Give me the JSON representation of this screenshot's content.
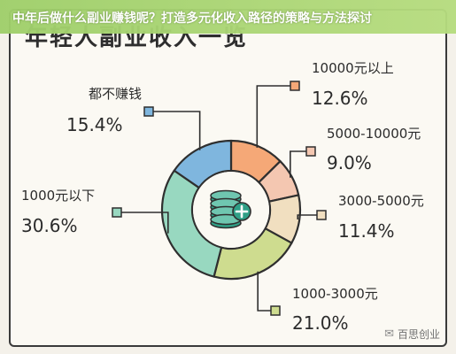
{
  "page": {
    "title": "中年后做什么副业赚钱呢？打造多元化收入路径的策略与方法探讨",
    "background_title": "年轻人副业收入一览",
    "watermark": "百思创业",
    "watermark_icon": "wechat-icon"
  },
  "chart_data": {
    "type": "pie",
    "title": "年轻人副业收入一览",
    "series": [
      {
        "label": "10000元以上",
        "value": 12.6,
        "display": "12.6%",
        "color": "#f5a877"
      },
      {
        "label": "5000-10000元",
        "value": 9.0,
        "display": "9.0%",
        "color": "#f4c7b1"
      },
      {
        "label": "3000-5000元",
        "value": 11.4,
        "display": "11.4%",
        "color": "#f1dfc0"
      },
      {
        "label": "1000-3000元",
        "value": 21.0,
        "display": "21.0%",
        "color": "#cedc8f"
      },
      {
        "label": "1000元以下",
        "value": 30.6,
        "display": "30.6%",
        "color": "#98d8c0"
      },
      {
        "label": "都不赚钱",
        "value": 15.4,
        "display": "15.4%",
        "color": "#7fb6de"
      }
    ],
    "center_icon": "coin-stack-plus-icon",
    "center_color": "#2f9f86",
    "outline_color": "#2f2f2f"
  }
}
